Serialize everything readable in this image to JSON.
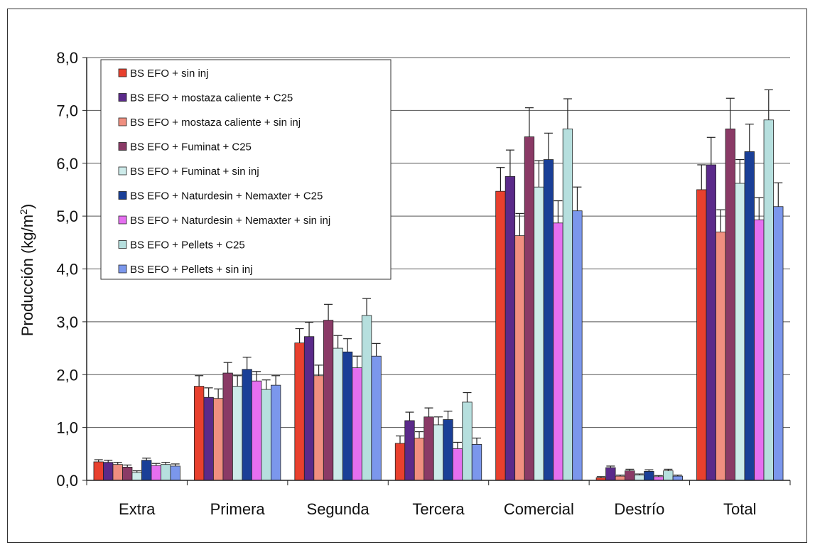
{
  "chart_data": {
    "type": "bar",
    "ylabel": "Producción (kg/m",
    "ylabel_sup": "2",
    "ylabel_close": ")",
    "ylim": [
      0,
      8
    ],
    "yticks": [
      "0,0",
      "1,0",
      "2,0",
      "3,0",
      "4,0",
      "5,0",
      "6,0",
      "7,0",
      "8,0"
    ],
    "grid": true,
    "legend_position": "top-left",
    "categories": [
      "Extra",
      "Primera",
      "Segunda",
      "Tercera",
      "Comercial",
      "Destrío",
      "Total"
    ],
    "series": [
      {
        "name": "BS EFO + sin inj",
        "color": "#e8402e",
        "values": [
          0.35,
          1.78,
          2.6,
          0.7,
          5.47,
          0.05,
          5.5
        ],
        "errors": [
          0.04,
          0.2,
          0.27,
          0.14,
          0.45,
          0.02,
          0.47
        ]
      },
      {
        "name": "BS EFO + mostaza caliente + C25",
        "color": "#5b2a8a",
        "values": [
          0.34,
          1.57,
          2.72,
          1.13,
          5.75,
          0.24,
          5.97
        ],
        "errors": [
          0.04,
          0.18,
          0.27,
          0.16,
          0.5,
          0.03,
          0.52
        ]
      },
      {
        "name": "BS EFO + mostaza caliente + sin inj",
        "color": "#f08f80",
        "values": [
          0.3,
          1.55,
          1.98,
          0.8,
          4.63,
          0.08,
          4.7
        ],
        "errors": [
          0.04,
          0.18,
          0.2,
          0.12,
          0.42,
          0.02,
          0.42
        ]
      },
      {
        "name": "BS EFO + Fuminat + C25",
        "color": "#8a3a66",
        "values": [
          0.25,
          2.03,
          3.03,
          1.2,
          6.5,
          0.18,
          6.65
        ],
        "errors": [
          0.04,
          0.2,
          0.3,
          0.17,
          0.55,
          0.03,
          0.58
        ]
      },
      {
        "name": "BS EFO + Fuminat + sin inj",
        "color": "#cdebea",
        "values": [
          0.15,
          1.78,
          2.5,
          1.05,
          5.55,
          0.1,
          5.62
        ],
        "errors": [
          0.03,
          0.2,
          0.24,
          0.15,
          0.5,
          0.02,
          0.45
        ]
      },
      {
        "name": "BS EFO + Naturdesin + Nemaxter + C25",
        "color": "#1a3f97",
        "values": [
          0.38,
          2.1,
          2.43,
          1.15,
          6.07,
          0.17,
          6.22
        ],
        "errors": [
          0.04,
          0.23,
          0.25,
          0.16,
          0.5,
          0.03,
          0.52
        ]
      },
      {
        "name": "BS EFO + Naturdesin + Nemaxter + sin inj",
        "color": "#e56ff0",
        "values": [
          0.28,
          1.88,
          2.13,
          0.6,
          4.87,
          0.07,
          4.93
        ],
        "errors": [
          0.04,
          0.18,
          0.22,
          0.12,
          0.42,
          0.02,
          0.42
        ]
      },
      {
        "name": "BS EFO + Pellets + C25",
        "color": "#b6dfde",
        "values": [
          0.3,
          1.72,
          3.12,
          1.48,
          6.65,
          0.18,
          6.82
        ],
        "errors": [
          0.04,
          0.18,
          0.32,
          0.18,
          0.57,
          0.03,
          0.57
        ]
      },
      {
        "name": "BS EFO + Pellets + sin inj",
        "color": "#7b97ec",
        "values": [
          0.27,
          1.8,
          2.35,
          0.68,
          5.1,
          0.08,
          5.18
        ],
        "errors": [
          0.04,
          0.18,
          0.24,
          0.12,
          0.45,
          0.02,
          0.45
        ]
      }
    ]
  }
}
